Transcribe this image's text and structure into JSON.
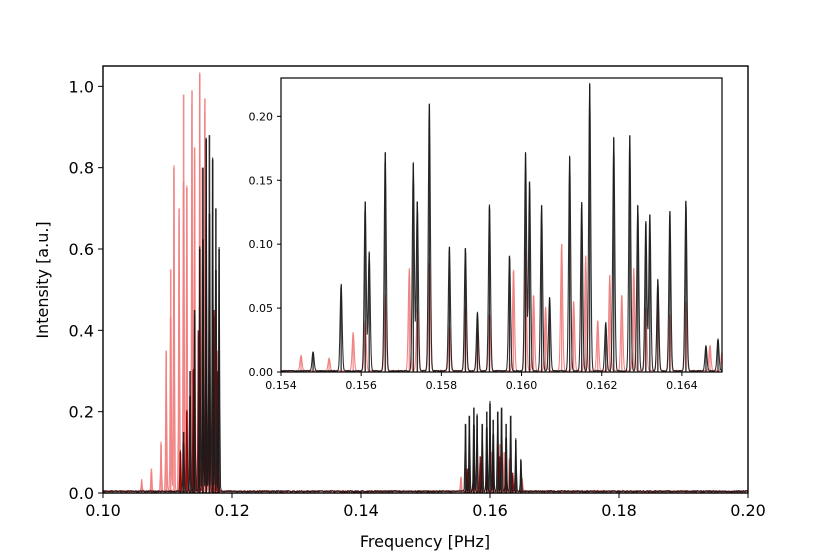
{
  "chart_data": [
    {
      "type": "line",
      "title": "",
      "xlabel": "Frequency [PHz]",
      "ylabel": "Intensity [a.u.]",
      "xlim": [
        0.1,
        0.2
      ],
      "ylim": [
        0.0,
        1.05
      ],
      "xticks": [
        "0.10",
        "0.12",
        "0.14",
        "0.16",
        "0.18",
        "0.20"
      ],
      "yticks": [
        "0.0",
        "0.2",
        "0.4",
        "0.6",
        "0.8",
        "1.0"
      ],
      "grid": false,
      "legend": "none",
      "series": [
        {
          "color": "#f08080",
          "peaks_x": [
            0.106,
            0.1075,
            0.109,
            0.1098,
            0.1105,
            0.111,
            0.1118,
            0.1125,
            0.113,
            0.1138,
            0.1142,
            0.115,
            0.1154,
            0.1158,
            0.1165,
            0.117,
            0.1178,
            0.1555,
            0.1568,
            0.1575,
            0.1585,
            0.1595,
            0.1602,
            0.1615,
            0.1622,
            0.163,
            0.164,
            0.165
          ],
          "peaks_y": [
            0.03,
            0.06,
            0.12,
            0.35,
            0.55,
            0.8,
            0.7,
            0.98,
            0.75,
            0.99,
            0.85,
            1.03,
            0.8,
            0.97,
            0.65,
            0.55,
            0.35,
            0.04,
            0.06,
            0.05,
            0.08,
            0.1,
            0.1,
            0.12,
            0.1,
            0.08,
            0.05,
            0.03
          ]
        },
        {
          "color": "#8b0000",
          "peaks_x": [
            0.112,
            0.113,
            0.114,
            0.1148,
            0.1155,
            0.116,
            0.1165,
            0.1172,
            0.1178,
            0.1565,
            0.1575,
            0.1585,
            0.1595,
            0.1605,
            0.1615,
            0.1625,
            0.1635
          ],
          "peaks_y": [
            0.1,
            0.2,
            0.3,
            0.4,
            0.55,
            0.65,
            0.52,
            0.45,
            0.3,
            0.06,
            0.08,
            0.09,
            0.1,
            0.1,
            0.09,
            0.08,
            0.05
          ]
        },
        {
          "color": "#1a1a1a",
          "peaks_x": [
            0.1125,
            0.1135,
            0.1142,
            0.115,
            0.1155,
            0.116,
            0.1165,
            0.117,
            0.1175,
            0.118,
            0.1562,
            0.1568,
            0.1575,
            0.158,
            0.1588,
            0.1595,
            0.16,
            0.1605,
            0.1612,
            0.1618,
            0.1625,
            0.1632,
            0.164,
            0.1648
          ],
          "peaks_y": [
            0.15,
            0.3,
            0.45,
            0.6,
            0.8,
            0.87,
            0.88,
            0.82,
            0.7,
            0.6,
            0.17,
            0.19,
            0.21,
            0.19,
            0.17,
            0.2,
            0.22,
            0.18,
            0.2,
            0.21,
            0.17,
            0.19,
            0.13,
            0.08
          ]
        }
      ]
    },
    {
      "type": "line",
      "title": "",
      "xlabel": "",
      "ylabel": "",
      "xlim": [
        0.154,
        0.165
      ],
      "ylim": [
        0.0,
        0.23
      ],
      "xticks": [
        "0.154",
        "0.156",
        "0.158",
        "0.160",
        "0.162",
        "0.164"
      ],
      "yticks": [
        "0.00",
        "0.05",
        "0.10",
        "0.15",
        "0.20"
      ],
      "grid": false,
      "legend": "none",
      "series": [
        {
          "color": "#f08080",
          "peaks_x": [
            0.1545,
            0.1552,
            0.1558,
            0.1561,
            0.1566,
            0.1572,
            0.1574,
            0.1577,
            0.1582,
            0.1586,
            0.1589,
            0.1592,
            0.1598,
            0.1601,
            0.1603,
            0.1606,
            0.161,
            0.1613,
            0.1616,
            0.1619,
            0.1622,
            0.1625,
            0.1628,
            0.1631,
            0.1634,
            0.1637,
            0.1641,
            0.1647,
            0.165
          ],
          "peaks_y": [
            0.012,
            0.01,
            0.03,
            0.04,
            0.06,
            0.08,
            0.05,
            0.085,
            0.035,
            0.05,
            0.03,
            0.045,
            0.08,
            0.095,
            0.06,
            0.05,
            0.1,
            0.055,
            0.09,
            0.04,
            0.075,
            0.06,
            0.08,
            0.05,
            0.065,
            0.045,
            0.055,
            0.02,
            0.015
          ]
        },
        {
          "color": "#1a1a1a",
          "peaks_x": [
            0.1548,
            0.1555,
            0.1561,
            0.1562,
            0.1566,
            0.1573,
            0.1574,
            0.1577,
            0.1582,
            0.1586,
            0.1589,
            0.1592,
            0.1597,
            0.1601,
            0.1602,
            0.1605,
            0.1607,
            0.1612,
            0.1615,
            0.1617,
            0.1621,
            0.1623,
            0.1627,
            0.1629,
            0.1631,
            0.1632,
            0.1634,
            0.1637,
            0.1641,
            0.1646,
            0.1649
          ],
          "peaks_y": [
            0.015,
            0.068,
            0.133,
            0.093,
            0.172,
            0.163,
            0.133,
            0.21,
            0.098,
            0.097,
            0.046,
            0.131,
            0.091,
            0.171,
            0.149,
            0.13,
            0.058,
            0.168,
            0.133,
            0.225,
            0.038,
            0.183,
            0.185,
            0.13,
            0.118,
            0.123,
            0.072,
            0.126,
            0.134,
            0.02,
            0.025
          ]
        }
      ]
    }
  ]
}
